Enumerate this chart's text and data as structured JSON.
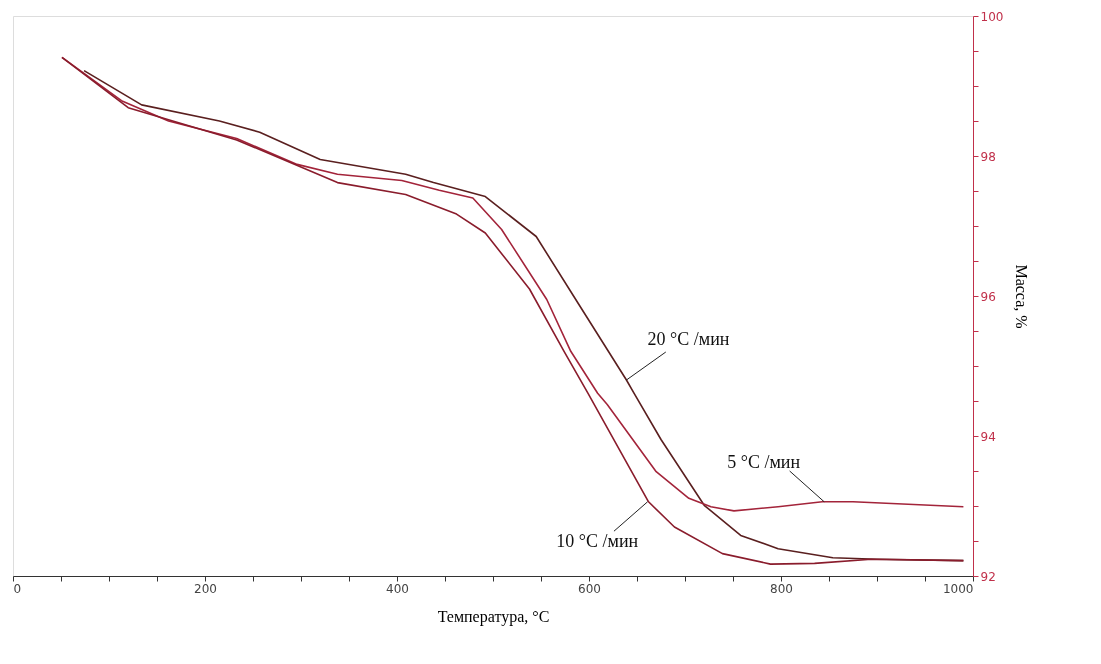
{
  "chart_data": {
    "type": "line",
    "xlabel": "Температура, °C",
    "ylabel": "Масса, %",
    "xlim": [
      0,
      1000
    ],
    "xticks": [
      0,
      {
        "value": 50,
        "label": null
      },
      {
        "value": 100,
        "label": null
      },
      {
        "value": 150,
        "label": null
      },
      200,
      {
        "value": 250,
        "label": null
      },
      {
        "value": 300,
        "label": null
      },
      {
        "value": 350,
        "label": null
      },
      400,
      {
        "value": 450,
        "label": null
      },
      {
        "value": 500,
        "label": null
      },
      {
        "value": 550,
        "label": null
      },
      600,
      {
        "value": 650,
        "label": null
      },
      {
        "value": 700,
        "label": null
      },
      {
        "value": 750,
        "label": null
      },
      800,
      {
        "value": 850,
        "label": null
      },
      {
        "value": 900,
        "label": null
      },
      {
        "value": 950,
        "label": null
      },
      1000
    ],
    "ylim": [
      92,
      100
    ],
    "yticks": [
      92,
      {
        "value": 92.5,
        "label": null
      },
      {
        "value": 93,
        "label": null
      },
      {
        "value": 93.5,
        "label": null
      },
      94,
      {
        "value": 94.5,
        "label": null
      },
      {
        "value": 95,
        "label": null
      },
      {
        "value": 95.5,
        "label": null
      },
      96,
      {
        "value": 96.5,
        "label": null
      },
      {
        "value": 97,
        "label": null
      },
      {
        "value": 97.5,
        "label": null
      },
      98,
      {
        "value": 98.5,
        "label": null
      },
      {
        "value": 99,
        "label": null
      },
      {
        "value": 99.5,
        "label": null
      },
      100
    ],
    "grid": false,
    "legend": false,
    "marker": "none",
    "line_style": "solid",
    "series": [
      {
        "color": "#5a1f1f",
        "x": [
          74,
          134,
          215,
          257,
          320,
          409,
          438,
          492,
          545,
          588,
          639,
          647,
          675,
          720,
          758,
          797,
          854,
          900,
          990
        ],
        "values": [
          99.22,
          98.73,
          98.5,
          98.34,
          97.95,
          97.74,
          97.62,
          97.42,
          96.85,
          95.91,
          94.8,
          94.61,
          93.95,
          93.01,
          92.58,
          92.39,
          92.26,
          92.24,
          92.22
        ]
      },
      {
        "color": "#a3243a",
        "x": [
          51,
          113,
          162,
          233,
          296,
          338,
          405,
          444,
          479,
          509,
          556,
          581,
          609,
          619,
          670,
          704,
          727,
          751,
          797,
          843,
          875,
          990
        ],
        "values": [
          99.41,
          98.79,
          98.5,
          98.25,
          97.88,
          97.74,
          97.65,
          97.51,
          97.4,
          96.95,
          95.95,
          95.21,
          94.61,
          94.45,
          93.49,
          93.11,
          92.99,
          92.93,
          92.99,
          93.06,
          93.06,
          92.99
        ]
      },
      {
        "color": "#8a1c2c",
        "x": [
          51,
          120,
          233,
          338,
          409,
          462,
          492,
          538,
          574,
          599,
          662,
          689,
          739,
          789,
          835,
          894,
          990
        ],
        "values": [
          99.41,
          98.69,
          98.23,
          97.62,
          97.45,
          97.17,
          96.9,
          96.1,
          95.21,
          94.61,
          93.06,
          92.7,
          92.32,
          92.17,
          92.18,
          92.24,
          92.22
        ]
      }
    ],
    "annotations": [
      {
        "text": "20 °C /мин",
        "x": 639,
        "y": 94.8
      },
      {
        "text": "5 °C /мин",
        "x": 845,
        "y": 93.06
      },
      {
        "text": "10 °C /мин",
        "x": 661,
        "y": 93.06
      }
    ]
  }
}
